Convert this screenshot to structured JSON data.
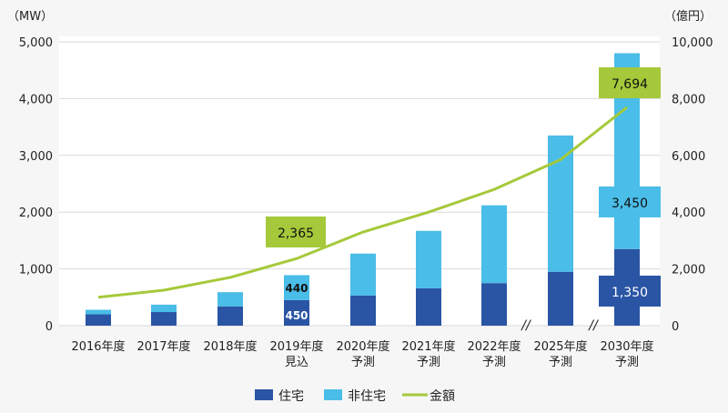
{
  "chart_data": {
    "type": "bar",
    "categories": [
      "2016年度",
      "2017年度",
      "2018年度",
      "2019年度\n見込",
      "2020年度\n予測",
      "2021年度\n予測",
      "2022年度\n予測",
      "2025年度\n予測",
      "2030年度\n予測"
    ],
    "left_unit": "（MW）",
    "right_unit": "（億円）",
    "ylim": [
      0,
      5000
    ],
    "y2lim": [
      0,
      10000
    ],
    "yticks": [
      "0",
      "1,000",
      "2,000",
      "3,000",
      "4,000",
      "5,000"
    ],
    "y2ticks": [
      "0",
      "2,000",
      "4,000",
      "6,000",
      "8,000",
      "10,000"
    ],
    "series": [
      {
        "name": "住宅",
        "type": "bar",
        "color": "#2a55a4",
        "values": [
          200,
          240,
          340,
          450,
          530,
          660,
          750,
          950,
          1350
        ]
      },
      {
        "name": "非住宅",
        "type": "bar",
        "color": "#4abde8",
        "values": [
          80,
          130,
          250,
          440,
          740,
          1010,
          1370,
          2400,
          3450
        ]
      },
      {
        "name": "金額",
        "type": "line",
        "axis": "right",
        "color": "#a5c93a",
        "values": [
          1000,
          1250,
          1700,
          2365,
          3300,
          4000,
          4800,
          5850,
          7694
        ]
      }
    ],
    "annotations": {
      "line_2019": "2,365",
      "line_2030": "7,694",
      "bar_2019_res": "450",
      "bar_2019_nonres": "440",
      "bar_2030_res": "1,350",
      "bar_2030_nonres": "3,450"
    },
    "axis_breaks": [
      "//",
      "//"
    ],
    "legend_position": "bottom"
  }
}
